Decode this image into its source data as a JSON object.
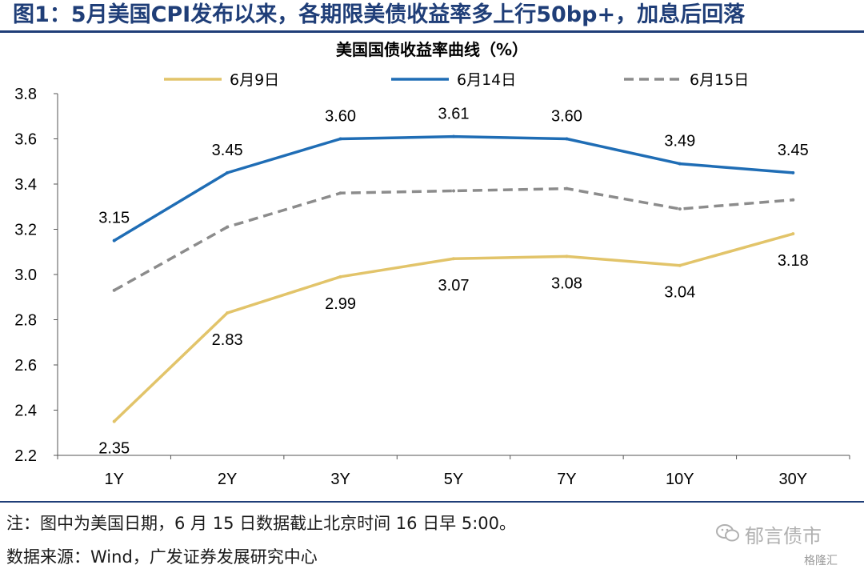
{
  "figure": {
    "title": "图1：5月美国CPI发布以来，各期限美债收益率多上行50bp+，加息后回落",
    "note": "注：图中为美国日期，6 月 15 日数据截止北京时间 16 日早 5:00。",
    "source": "数据来源：Wind，广发证券发展研究中心",
    "watermark": "郁言债市",
    "watermark2": "格隆汇"
  },
  "chart_data": {
    "type": "line",
    "title": "美国国债收益率曲线（%）",
    "xlabel": "",
    "ylabel": "",
    "categories": [
      "1Y",
      "2Y",
      "3Y",
      "5Y",
      "7Y",
      "10Y",
      "30Y"
    ],
    "ylim": [
      2.2,
      3.8
    ],
    "yticks": [
      "2.2",
      "2.4",
      "2.6",
      "2.8",
      "3.0",
      "3.2",
      "3.4",
      "3.6",
      "3.8"
    ],
    "grid": false,
    "legend_position": "top",
    "series": [
      {
        "name": "6月9日",
        "color": "#e2c46a",
        "dash": false,
        "values": [
          2.35,
          2.83,
          2.99,
          3.07,
          3.08,
          3.04,
          3.18
        ],
        "labels": [
          "2.35",
          "2.83",
          "2.99",
          "3.07",
          "3.08",
          "3.04",
          "3.18"
        ],
        "label_position": "below"
      },
      {
        "name": "6月14日",
        "color": "#1f6db5",
        "dash": false,
        "values": [
          3.15,
          3.45,
          3.6,
          3.61,
          3.6,
          3.49,
          3.45
        ],
        "labels": [
          "3.15",
          "3.45",
          "3.60",
          "3.61",
          "3.60",
          "3.49",
          "3.45"
        ],
        "label_position": "above"
      },
      {
        "name": "6月15日",
        "color": "#8c8c8c",
        "dash": true,
        "values": [
          2.93,
          3.21,
          3.36,
          3.37,
          3.38,
          3.29,
          3.33
        ],
        "labels": [],
        "label_position": "none"
      }
    ]
  }
}
